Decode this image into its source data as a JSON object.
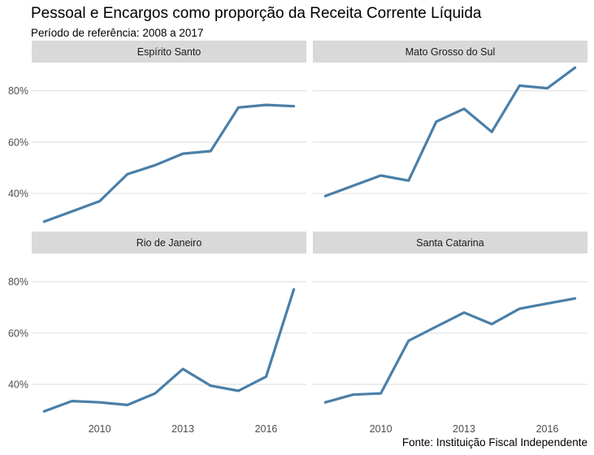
{
  "title": "Pessoal e Encargos como proporção da Receita Corrente Líquida",
  "subtitle": "Período de referência: 2008 a 2017",
  "caption": "Fonte: Instituição Fiscal Independente",
  "line_color": "#4a7fa8",
  "strip_color": "#d9d9d9",
  "grid_color": "#dedede",
  "chart_data": {
    "type": "line",
    "facets": true,
    "title": "Pessoal e Encargos como proporção da Receita Corrente Líquida",
    "subtitle": "Período de referência: 2008 a 2017",
    "x": [
      2008,
      2009,
      2010,
      2011,
      2012,
      2013,
      2014,
      2015,
      2016,
      2017
    ],
    "xticks": [
      2010,
      2013,
      2016
    ],
    "xtick_labels": [
      "2010",
      "2013",
      "2016"
    ],
    "xlim": [
      2007.55,
      2017.45
    ],
    "ylim": [
      0.28,
      0.91
    ],
    "yticks": [
      0.4,
      0.6,
      0.8
    ],
    "ytick_labels": [
      "40%",
      "60%",
      "80%"
    ],
    "grid": true,
    "panels": [
      {
        "name": "Espírito Santo",
        "values": [
          0.29,
          0.33,
          0.37,
          0.475,
          0.51,
          0.555,
          0.565,
          0.735,
          0.745,
          0.74
        ]
      },
      {
        "name": "Mato Grosso do Sul",
        "values": [
          0.39,
          0.43,
          0.47,
          0.45,
          0.68,
          0.73,
          0.64,
          0.82,
          0.81,
          0.89
        ]
      },
      {
        "name": "Rio de Janeiro",
        "values": [
          0.295,
          0.335,
          0.33,
          0.32,
          0.365,
          0.46,
          0.395,
          0.375,
          0.43,
          0.77
        ]
      },
      {
        "name": "Santa Catarina",
        "values": [
          0.33,
          0.36,
          0.365,
          0.57,
          0.625,
          0.68,
          0.635,
          0.695,
          0.715,
          0.735
        ]
      }
    ]
  }
}
